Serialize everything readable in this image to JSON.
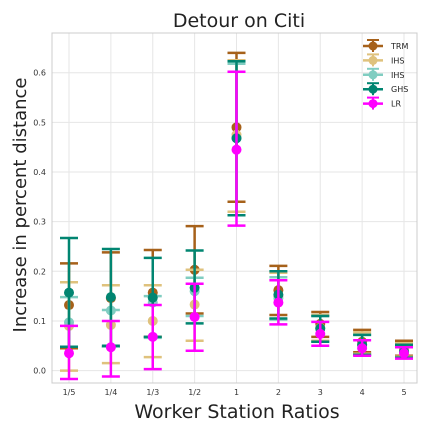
{
  "chart_data": {
    "type": "scatter",
    "title": "Detour on Citi",
    "xlabel": "Worker Station Ratios",
    "ylabel": "Increase in percent distance",
    "categories": [
      "1/5",
      "1/4",
      "1/3",
      "1/2",
      "1",
      "2",
      "3",
      "4",
      "5"
    ],
    "yticks": [
      "0.0",
      "0.1",
      "0.2",
      "0.3",
      "0.4",
      "0.5",
      "0.6"
    ],
    "ylim": [
      -0.025,
      0.68
    ],
    "grid": true,
    "legend_position": "top-right",
    "series": [
      {
        "name": "TRM",
        "color": "#a6611a",
        "values": [
          0.132,
          0.146,
          0.157,
          0.203,
          0.49,
          0.162,
          0.094,
          0.058,
          0.043
        ],
        "err_low": [
          0.045,
          0.048,
          0.068,
          0.115,
          0.34,
          0.112,
          0.068,
          0.037,
          0.03
        ],
        "err_high": [
          0.216,
          0.238,
          0.243,
          0.291,
          0.64,
          0.211,
          0.118,
          0.082,
          0.06
        ]
      },
      {
        "name": "IHS",
        "color": "#dfc27d",
        "values": [
          0.09,
          0.092,
          0.1,
          0.133,
          0.475,
          0.15,
          0.086,
          0.052,
          0.04
        ],
        "err_low": [
          0.0,
          0.015,
          0.027,
          0.06,
          0.32,
          0.104,
          0.06,
          0.034,
          0.028
        ],
        "err_high": [
          0.178,
          0.172,
          0.172,
          0.203,
          0.625,
          0.197,
          0.112,
          0.077,
          0.055
        ]
      },
      {
        "name": "IHS",
        "color": "#80cdc1",
        "values": [
          0.097,
          0.121,
          0.137,
          0.16,
          0.468,
          0.146,
          0.084,
          0.05,
          0.038
        ],
        "err_low": [
          0.048,
          0.048,
          0.066,
          0.11,
          0.313,
          0.103,
          0.058,
          0.032,
          0.026
        ],
        "err_high": [
          0.148,
          0.122,
          0.15,
          0.187,
          0.618,
          0.188,
          0.11,
          0.072,
          0.052
        ]
      },
      {
        "name": "GHS",
        "color": "#018571",
        "values": [
          0.157,
          0.148,
          0.147,
          0.167,
          0.468,
          0.153,
          0.085,
          0.052,
          0.038
        ],
        "err_low": [
          0.048,
          0.05,
          0.068,
          0.095,
          0.313,
          0.105,
          0.058,
          0.032,
          0.026
        ],
        "err_high": [
          0.267,
          0.245,
          0.227,
          0.242,
          0.623,
          0.2,
          0.11,
          0.072,
          0.052
        ]
      },
      {
        "name": "LR",
        "color": "#ff00ff",
        "values": [
          0.035,
          0.047,
          0.068,
          0.108,
          0.445,
          0.137,
          0.074,
          0.045,
          0.035
        ],
        "err_low": [
          -0.017,
          -0.012,
          0.003,
          0.04,
          0.292,
          0.093,
          0.05,
          0.03,
          0.024
        ],
        "err_high": [
          0.09,
          0.1,
          0.132,
          0.175,
          0.602,
          0.182,
          0.098,
          0.061,
          0.047
        ]
      }
    ]
  }
}
